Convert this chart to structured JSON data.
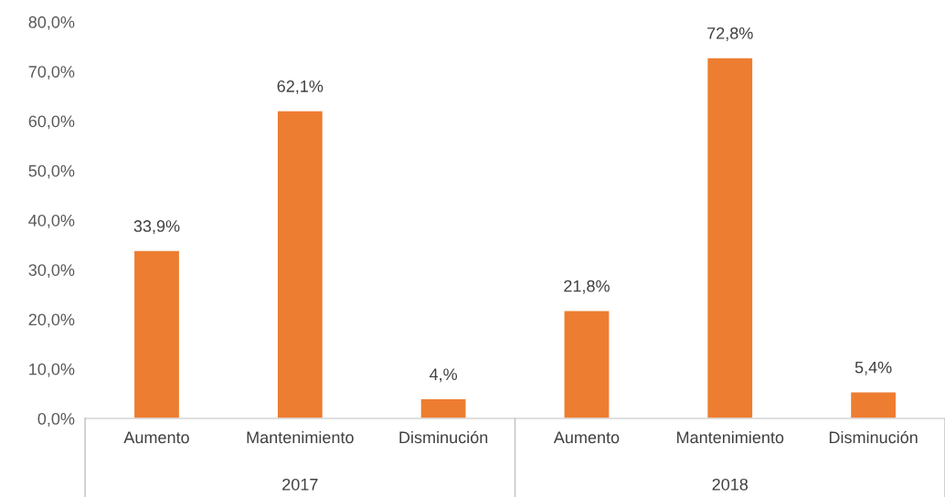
{
  "chart_data": {
    "type": "bar",
    "categories": [
      "Aumento",
      "Mantenimiento",
      "Disminución",
      "Aumento",
      "Mantenimiento",
      "Disminución"
    ],
    "values": [
      33.9,
      62.1,
      4.0,
      21.8,
      72.8,
      5.4
    ],
    "value_labels": [
      "33,9%",
      "62,1%",
      "4,%",
      "21,8%",
      "72,8%",
      "5,4%"
    ],
    "color": "#ed7d31",
    "ylim": [
      0,
      80
    ],
    "yticks": [
      {
        "value": 0,
        "label": "0,0%"
      },
      {
        "value": 10,
        "label": "10,0%"
      },
      {
        "value": 20,
        "label": "20,0%"
      },
      {
        "value": 30,
        "label": "30,0%"
      },
      {
        "value": 40,
        "label": "40,0%"
      },
      {
        "value": 50,
        "label": "50,0%"
      },
      {
        "value": 60,
        "label": "60,0%"
      },
      {
        "value": 70,
        "label": "70,0%"
      },
      {
        "value": 80,
        "label": "80,0%"
      }
    ],
    "annotations": [
      "2017",
      "2018"
    ],
    "grid": false,
    "legend": false
  }
}
